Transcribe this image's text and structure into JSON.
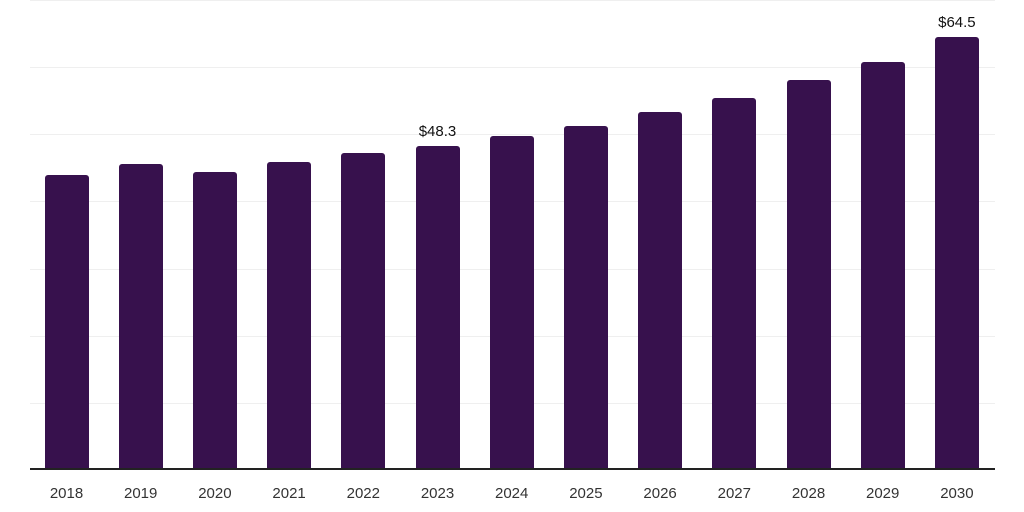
{
  "chart_data": {
    "type": "bar",
    "title": "",
    "xlabel": "",
    "ylabel": "",
    "categories": [
      "2018",
      "2019",
      "2020",
      "2021",
      "2022",
      "2023",
      "2024",
      "2025",
      "2026",
      "2027",
      "2028",
      "2029",
      "2030"
    ],
    "values": [
      44.0,
      45.5,
      44.4,
      45.8,
      47.2,
      48.3,
      49.7,
      51.2,
      53.3,
      55.4,
      58.1,
      60.7,
      64.5
    ],
    "data_labels": {
      "2023": "$48.3",
      "2030": "$64.5"
    },
    "ylim": [
      0,
      70
    ],
    "gridline_step": 10,
    "grid": true,
    "legend": false,
    "y_tick_labels_visible": false,
    "colors": {
      "bar": "#37114d",
      "axis": "#222222",
      "gridline": "#efefef",
      "tick_label": "#333333",
      "data_label": "#111111",
      "background": "#ffffff"
    }
  }
}
